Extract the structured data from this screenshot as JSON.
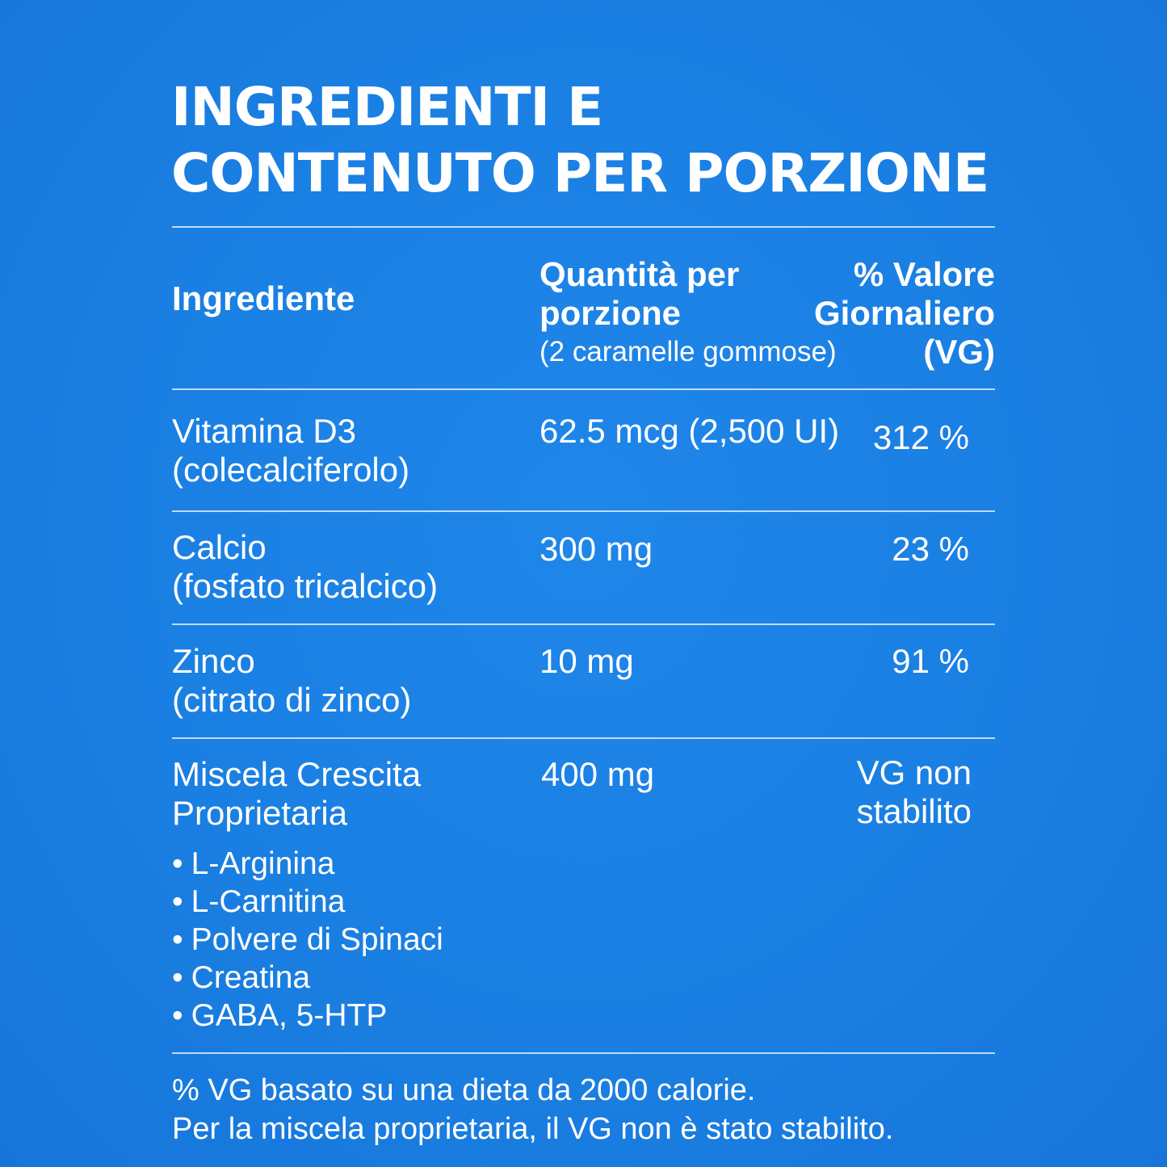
{
  "title": {
    "line1": "INGREDIENTI E",
    "line2": "CONTENUTO PER PORZIONE"
  },
  "header": {
    "ingredient": "Ingrediente",
    "amount_line1": "Quantità per",
    "amount_line2": "porzione",
    "amount_line3": "(2 caramelle gommose)",
    "dv_line1": "% Valore",
    "dv_line2": "Giornaliero",
    "dv_line3": "(VG)"
  },
  "rows": [
    {
      "name_line1": "Vitamina D3",
      "name_line2": "(colecalciferolo)",
      "amount": "62.5 mcg (2,500 UI)",
      "dv": "312 %"
    },
    {
      "name_line1": "Calcio",
      "name_line2": "(fosfato tricalcico)",
      "amount": "300 mg",
      "dv": "23 %"
    },
    {
      "name_line1": "Zinco",
      "name_line2": "(citrato di zinco)",
      "amount": "10 mg",
      "dv": "91 %"
    },
    {
      "name_line1": "Miscela Crescita",
      "name_line2": "Proprietaria",
      "amount": "400 mg",
      "dv_line1": "VG non",
      "dv_line2": "stabilito",
      "components": [
        "L-Arginina",
        "L-Carnitina",
        "Polvere di Spinaci",
        "Creatina",
        "GABA, 5-HTP"
      ]
    }
  ],
  "footer": {
    "line1": "% VG basato su una dieta da 2000 calorie.",
    "line2": "Per la miscela proprietaria, il VG non è stato stabilito."
  },
  "colors": {
    "background": "#1a7ee3",
    "text": "#ffffff"
  }
}
